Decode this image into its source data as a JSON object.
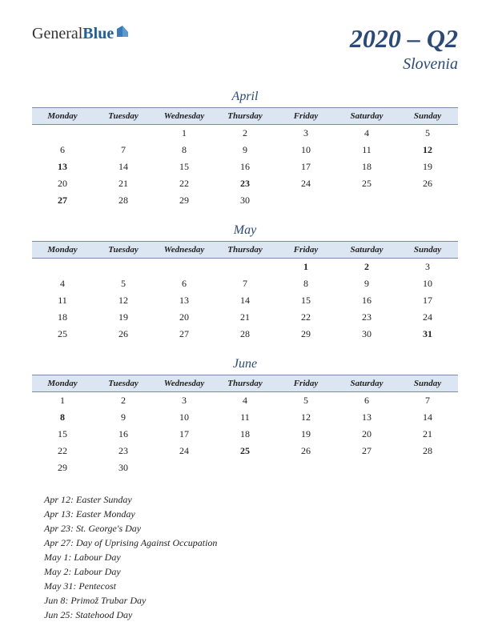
{
  "logo": {
    "part1": "General",
    "part2": "Blue"
  },
  "header": {
    "title": "2020 – Q2",
    "country": "Slovenia"
  },
  "day_headers": [
    "Monday",
    "Tuesday",
    "Wednesday",
    "Thursday",
    "Friday",
    "Saturday",
    "Sunday"
  ],
  "months": [
    {
      "name": "April",
      "weeks": [
        [
          "",
          "",
          "1",
          "2",
          "3",
          "4",
          "5"
        ],
        [
          "6",
          "7",
          "8",
          "9",
          "10",
          "11",
          "12"
        ],
        [
          "13",
          "14",
          "15",
          "16",
          "17",
          "18",
          "19"
        ],
        [
          "20",
          "21",
          "22",
          "23",
          "24",
          "25",
          "26"
        ],
        [
          "27",
          "28",
          "29",
          "30",
          "",
          "",
          ""
        ]
      ],
      "holidays": [
        "12",
        "13",
        "23",
        "27"
      ]
    },
    {
      "name": "May",
      "weeks": [
        [
          "",
          "",
          "",
          "",
          "1",
          "2",
          "3"
        ],
        [
          "4",
          "5",
          "6",
          "7",
          "8",
          "9",
          "10"
        ],
        [
          "11",
          "12",
          "13",
          "14",
          "15",
          "16",
          "17"
        ],
        [
          "18",
          "19",
          "20",
          "21",
          "22",
          "23",
          "24"
        ],
        [
          "25",
          "26",
          "27",
          "28",
          "29",
          "30",
          "31"
        ]
      ],
      "holidays": [
        "1",
        "2",
        "31"
      ]
    },
    {
      "name": "June",
      "weeks": [
        [
          "1",
          "2",
          "3",
          "4",
          "5",
          "6",
          "7"
        ],
        [
          "8",
          "9",
          "10",
          "11",
          "12",
          "13",
          "14"
        ],
        [
          "15",
          "16",
          "17",
          "18",
          "19",
          "20",
          "21"
        ],
        [
          "22",
          "23",
          "24",
          "25",
          "26",
          "27",
          "28"
        ],
        [
          "29",
          "30",
          "",
          "",
          "",
          "",
          ""
        ]
      ],
      "holidays": [
        "8",
        "25"
      ]
    }
  ],
  "holiday_list": [
    "Apr 12: Easter Sunday",
    "Apr 13: Easter Monday",
    "Apr 23: St. George's Day",
    "Apr 27: Day of Uprising Against Occupation",
    "May 1: Labour Day",
    "May 2: Labour Day",
    "May 31: Pentecost",
    "Jun 8: Primož Trubar Day",
    "Jun 25: Statehood Day"
  ],
  "colors": {
    "header_bg": "#dce6f2",
    "header_border": "#7a8aa8",
    "title_color": "#2a4a7a",
    "holiday_color": "#c00000"
  }
}
